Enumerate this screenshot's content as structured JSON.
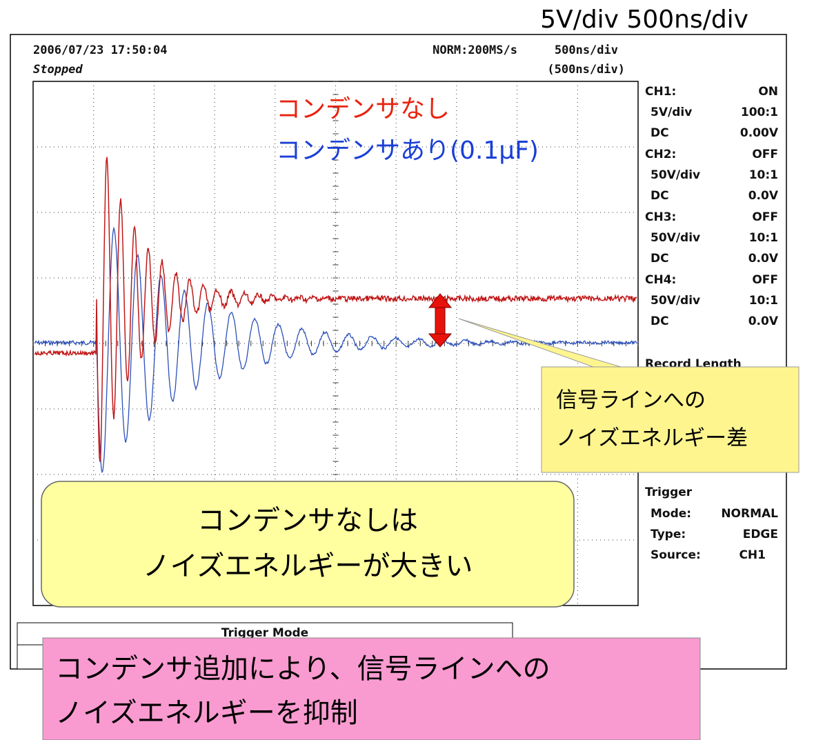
{
  "header": "5V/div  500ns/div",
  "screen": {
    "date": "2006/07/23  17:50:04",
    "status": "Stopped",
    "mode": "NORM:200MS/s",
    "timebase": "500ns/div",
    "timebase_sub": "(500ns/div)",
    "legend": [
      "コンデンサなし",
      "コンデンサあり(0.1μF)"
    ],
    "channels": [
      {
        "name": "CH1:",
        "state": "ON",
        "scale": "5V/div",
        "probe": "100:1",
        "coupling": "DC",
        "offset": "0.00V"
      },
      {
        "name": "CH2:",
        "state": "OFF",
        "scale": "50V/div",
        "probe": "10:1",
        "coupling": "DC",
        "offset": "0.0V"
      },
      {
        "name": "CH3:",
        "state": "OFF",
        "scale": "50V/div",
        "probe": "10:1",
        "coupling": "DC",
        "offset": "0.0V"
      },
      {
        "name": "CH4:",
        "state": "OFF",
        "scale": "50V/div",
        "probe": "10:1",
        "coupling": "DC",
        "offset": "0.0V"
      }
    ],
    "record_length": "Record Length",
    "trigger": {
      "title": "Trigger",
      "rows": [
        [
          "Mode:",
          "NORMAL"
        ],
        [
          "Type:",
          "EDGE"
        ],
        [
          "Source:",
          "CH1"
        ]
      ]
    },
    "trigger_mode": "Trigger Mode"
  },
  "callouts": {
    "difference": [
      "信号ラインへの",
      "ノイズエネルギー差"
    ],
    "large": [
      "コンデンサなしは",
      "ノイズエネルギーが大きい"
    ],
    "summary": [
      "コンデンサ追加により、信号ラインへの",
      "ノイズエネルギーを抑制"
    ]
  }
}
